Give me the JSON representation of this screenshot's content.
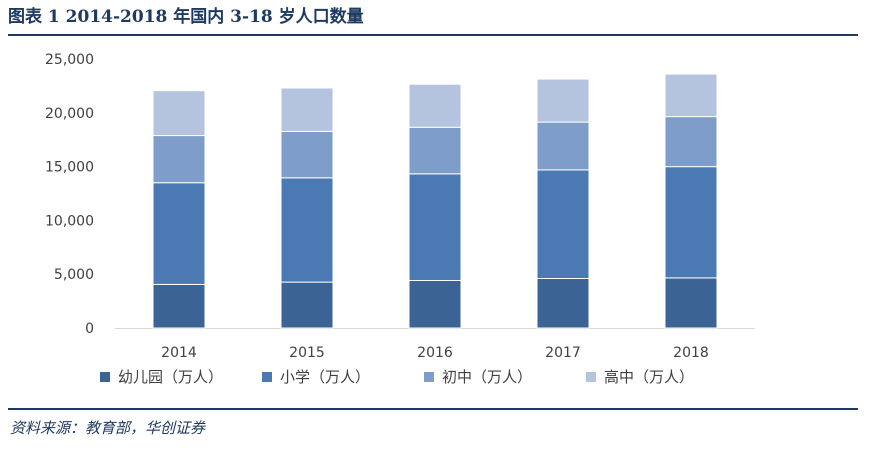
{
  "header": {
    "title": "图表 1 2014-2018 年国内 3-18 岁人口数量"
  },
  "footer": {
    "source": "资料来源：教育部，华创证券"
  },
  "colors": {
    "kindergarten": "#3b6394",
    "primary": "#4a79b4",
    "junior": "#7e9ec9",
    "senior": "#b4c3de",
    "axis": "#d9d9d9",
    "text": "#404040",
    "accent": "#1f3a60"
  },
  "chart_data": {
    "type": "bar",
    "stacked": true,
    "categories": [
      "2014",
      "2015",
      "2016",
      "2017",
      "2018"
    ],
    "series": [
      {
        "name": "幼儿园（万人）",
        "values": [
          4050,
          4265,
          4414,
          4600,
          4656
        ]
      },
      {
        "name": "小学（万人）",
        "values": [
          9451,
          9692,
          9913,
          10094,
          10339
        ]
      },
      {
        "name": "初中（万人）",
        "values": [
          4385,
          4312,
          4329,
          4442,
          4653
        ]
      },
      {
        "name": "高中（万人）",
        "values": [
          4170,
          4038,
          4000,
          4000,
          3950
        ]
      }
    ],
    "y_ticks": [
      "0",
      "5,000",
      "10,000",
      "15,000",
      "20,000",
      "25,000"
    ],
    "ylim": [
      0,
      25000
    ],
    "grid": false,
    "legend": "bottom",
    "title": "",
    "xlabel": "",
    "ylabel": ""
  }
}
